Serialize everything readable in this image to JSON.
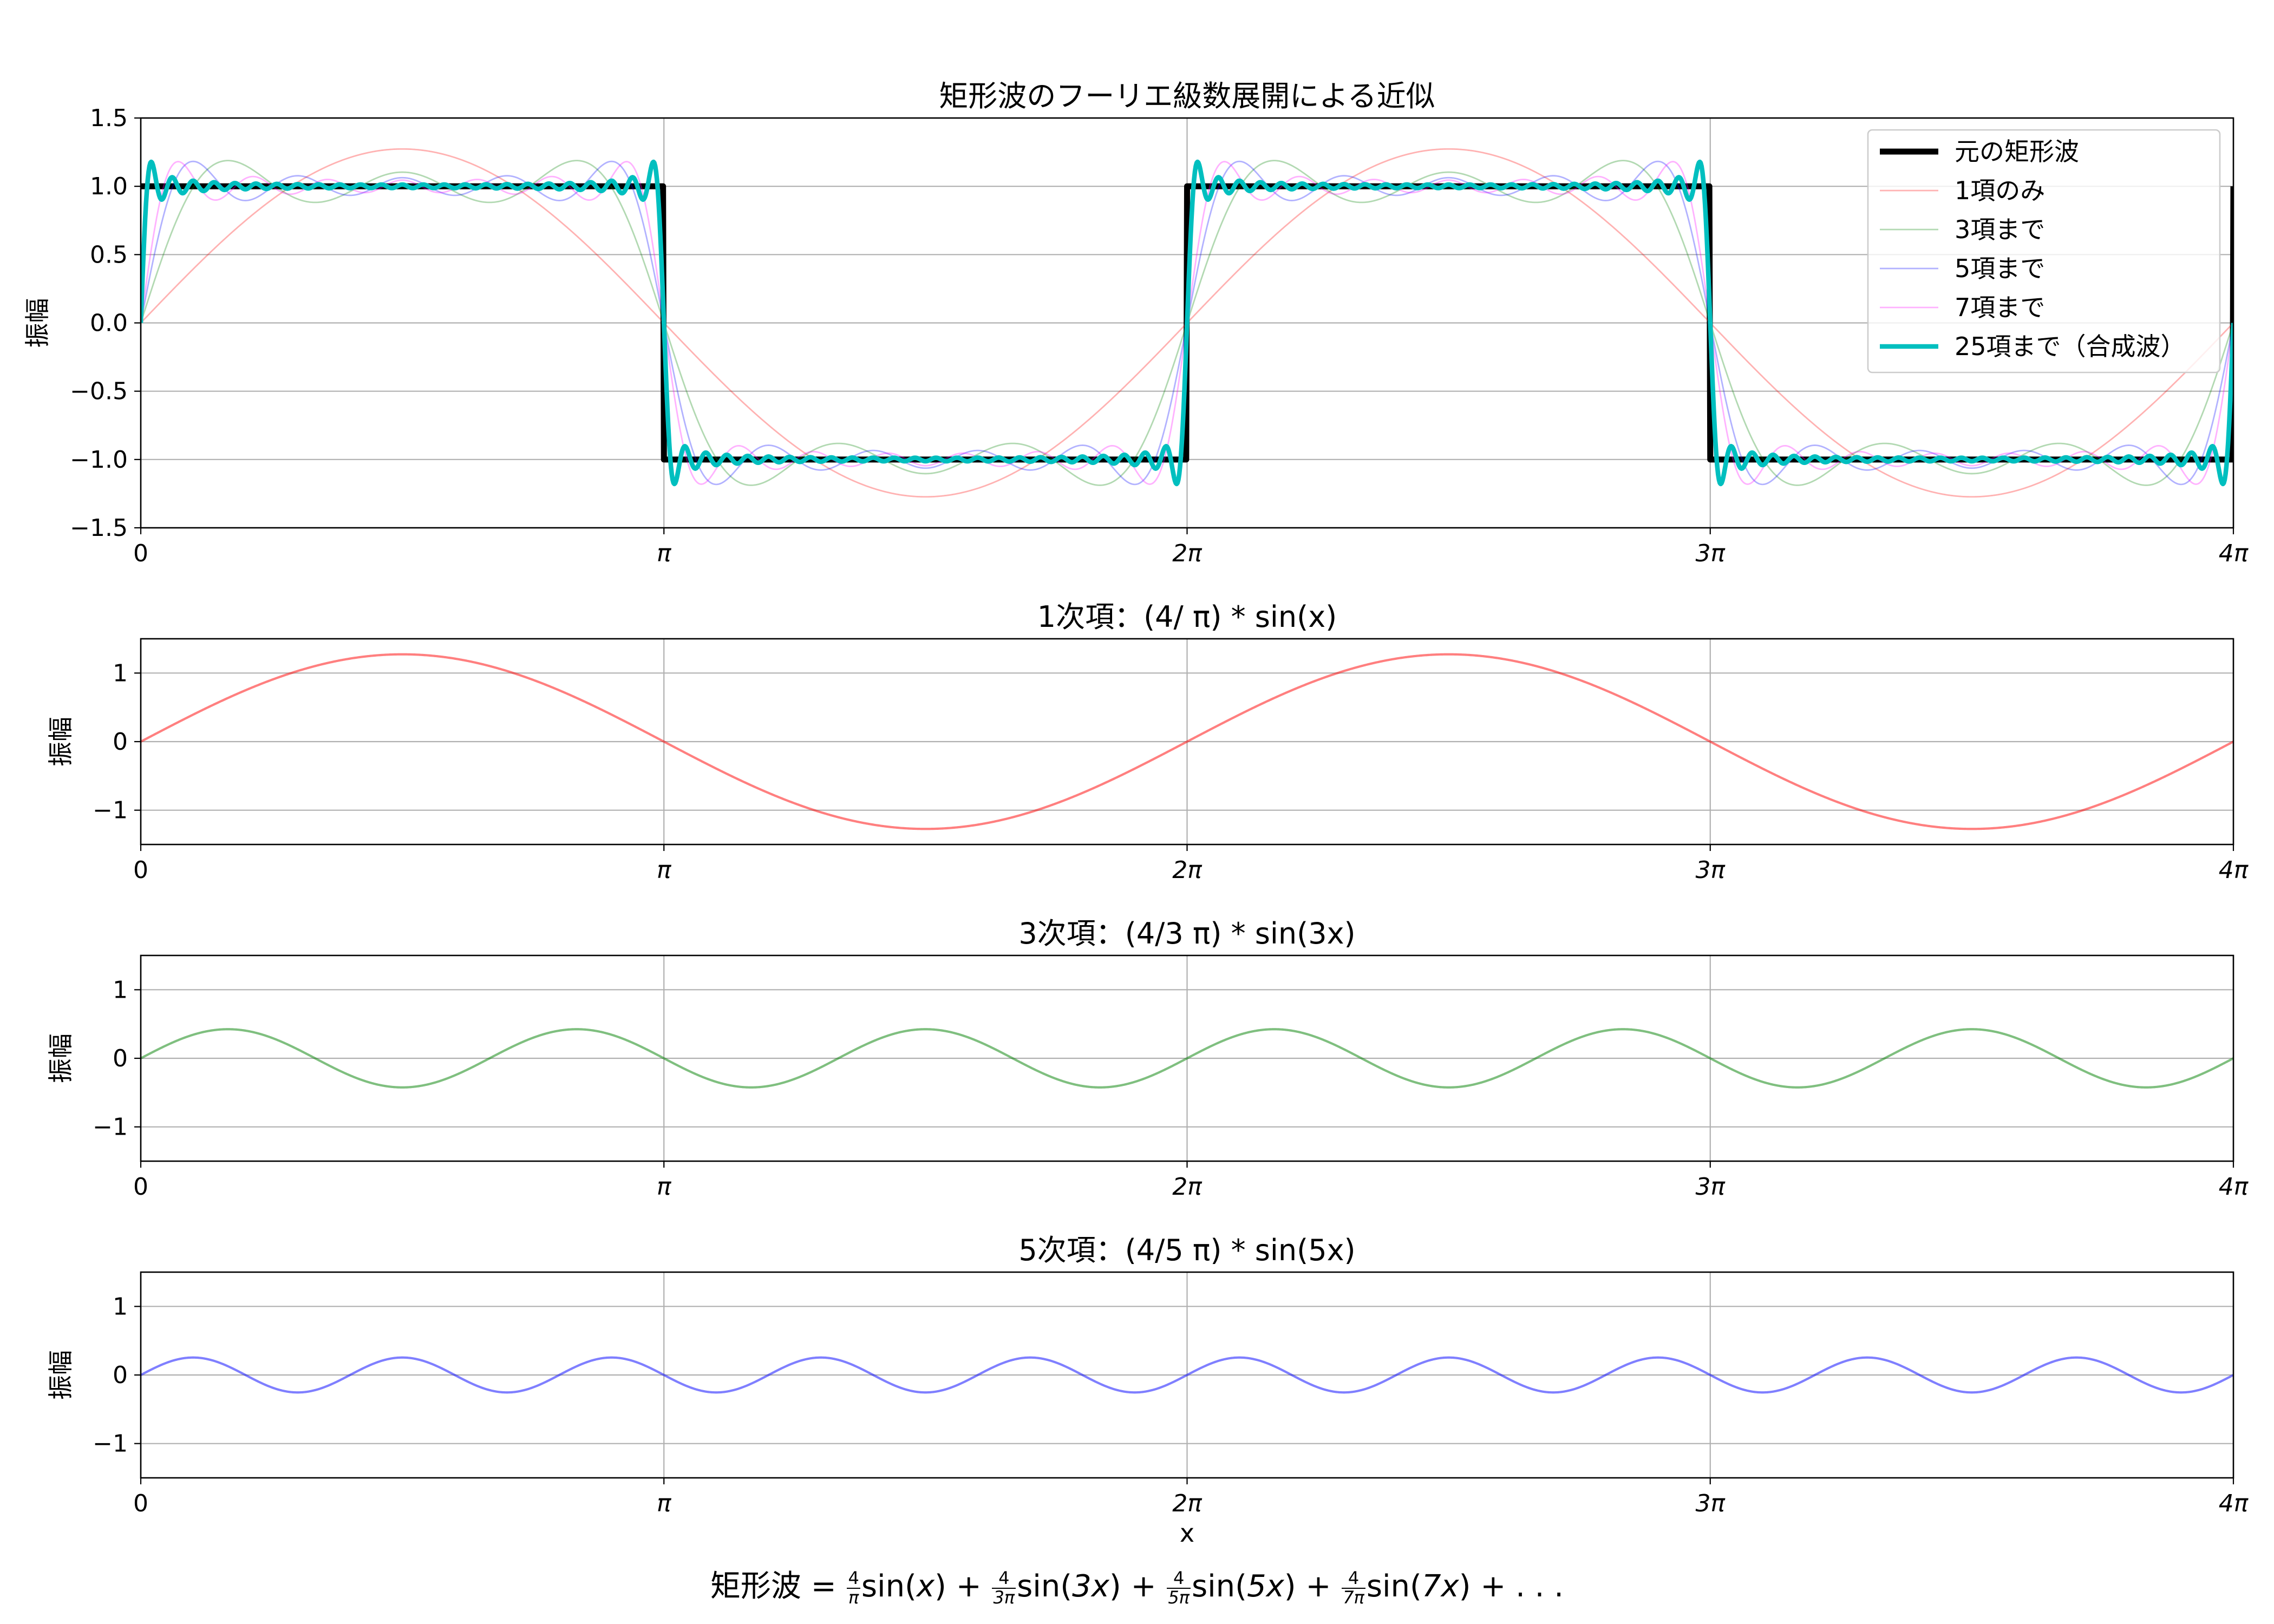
{
  "figure": {
    "xlabel": "x",
    "formula": {
      "lhs": "矩形波",
      "eq": "=",
      "terms": [
        {
          "num": "4",
          "den": "π",
          "func": "sin(",
          "arg": "x",
          "close": ")"
        },
        {
          "num": "4",
          "den": "3π",
          "func": "sin(",
          "arg": "3x",
          "close": ")"
        },
        {
          "num": "4",
          "den": "5π",
          "func": "sin(",
          "arg": "5x",
          "close": ")"
        },
        {
          "num": "4",
          "den": "7π",
          "func": "sin(",
          "arg": "7x",
          "close": ")"
        }
      ],
      "plus": "+",
      "tail": "+ . . ."
    }
  },
  "chart_data": [
    {
      "type": "line",
      "title": "矩形波のフーリエ級数展開による近似",
      "xlabel": "",
      "ylabel": "振幅",
      "xlim": [
        0,
        12.566370614359172
      ],
      "ylim": [
        -1.5,
        1.5
      ],
      "x_ticks": {
        "values": [
          0,
          3.141592653589793,
          6.283185307179586,
          9.42477796076938,
          12.566370614359172
        ],
        "labels": [
          "0",
          "π",
          "2π",
          "3π",
          "4π"
        ]
      },
      "y_ticks": {
        "values": [
          -1.5,
          -1.0,
          -0.5,
          0.0,
          0.5,
          1.0,
          1.5
        ],
        "labels": [
          "−1.5",
          "−1.0",
          "−0.5",
          "0.0",
          "0.5",
          "1.0",
          "1.5"
        ]
      },
      "grid": true,
      "legend": "top-right",
      "series": [
        {
          "name": "元の矩形波",
          "kind": "square",
          "color": "#000000",
          "alpha": 1.0,
          "linewidth": 4
        },
        {
          "name": "1項のみ",
          "kind": "partial",
          "n_terms": 1,
          "color": "#ff0000",
          "alpha": 0.3,
          "linewidth": 1
        },
        {
          "name": "3項まで",
          "kind": "partial",
          "n_terms": 3,
          "color": "#008000",
          "alpha": 0.3,
          "linewidth": 1
        },
        {
          "name": "5項まで",
          "kind": "partial",
          "n_terms": 5,
          "color": "#0000ff",
          "alpha": 0.3,
          "linewidth": 1
        },
        {
          "name": "7項まで",
          "kind": "partial",
          "n_terms": 7,
          "color": "#ff00ff",
          "alpha": 0.3,
          "linewidth": 1
        },
        {
          "name": "25項まで（合成波）",
          "kind": "partial",
          "n_terms": 25,
          "color": "#00bfbf",
          "alpha": 1.0,
          "linewidth": 3
        }
      ]
    },
    {
      "type": "line",
      "title": "1次項：(4/ π) * sin(x)",
      "ylabel": "振幅",
      "xlim": [
        0,
        12.566370614359172
      ],
      "ylim": [
        -1.5,
        1.5
      ],
      "x_ticks": {
        "values": [
          0,
          3.141592653589793,
          6.283185307179586,
          9.42477796076938,
          12.566370614359172
        ],
        "labels": [
          "0",
          "π",
          "2π",
          "3π",
          "4π"
        ]
      },
      "y_ticks": {
        "values": [
          -1,
          0,
          1
        ],
        "labels": [
          "−1",
          "0",
          "1"
        ]
      },
      "grid": true,
      "series": [
        {
          "kind": "harmonic",
          "harmonic": 1,
          "amplitude": 1.2732,
          "color": "#ff0000",
          "alpha": 0.5
        }
      ]
    },
    {
      "type": "line",
      "title": "3次項：(4/3 π) * sin(3x)",
      "ylabel": "振幅",
      "xlim": [
        0,
        12.566370614359172
      ],
      "ylim": [
        -1.5,
        1.5
      ],
      "x_ticks": {
        "values": [
          0,
          3.141592653589793,
          6.283185307179586,
          9.42477796076938,
          12.566370614359172
        ],
        "labels": [
          "0",
          "π",
          "2π",
          "3π",
          "4π"
        ]
      },
      "y_ticks": {
        "values": [
          -1,
          0,
          1
        ],
        "labels": [
          "−1",
          "0",
          "1"
        ]
      },
      "grid": true,
      "series": [
        {
          "kind": "harmonic",
          "harmonic": 3,
          "amplitude": 0.4244,
          "color": "#008000",
          "alpha": 0.5
        }
      ]
    },
    {
      "type": "line",
      "title": "5次項：(4/5 π) * sin(5x)",
      "ylabel": "振幅",
      "xlabel": "x",
      "xlim": [
        0,
        12.566370614359172
      ],
      "ylim": [
        -1.5,
        1.5
      ],
      "x_ticks": {
        "values": [
          0,
          3.141592653589793,
          6.283185307179586,
          9.42477796076938,
          12.566370614359172
        ],
        "labels": [
          "0",
          "π",
          "2π",
          "3π",
          "4π"
        ]
      },
      "y_ticks": {
        "values": [
          -1,
          0,
          1
        ],
        "labels": [
          "−1",
          "0",
          "1"
        ]
      },
      "grid": true,
      "series": [
        {
          "kind": "harmonic",
          "harmonic": 5,
          "amplitude": 0.2546,
          "color": "#0000ff",
          "alpha": 0.5
        }
      ]
    }
  ]
}
